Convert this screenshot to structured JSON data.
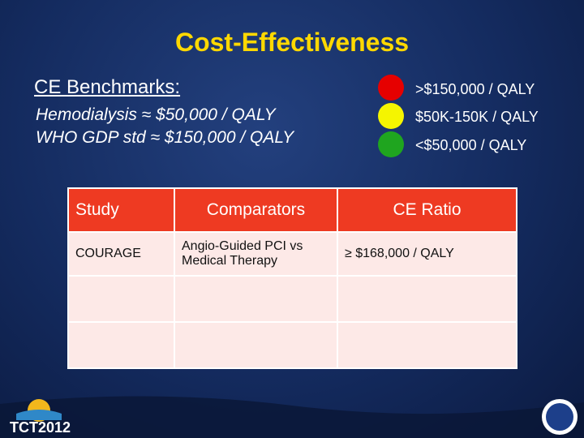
{
  "title": "Cost-Effectiveness",
  "benchmarks": {
    "heading": "CE Benchmarks:",
    "lines": [
      "Hemodialysis ≈ $50,000 / QALY",
      "WHO GDP std ≈ $150,000 / QALY"
    ]
  },
  "legend": [
    {
      "color": "#e60000",
      "label": ">$150,000 / QALY"
    },
    {
      "color": "#f5f500",
      "label": "$50K-150K / QALY"
    },
    {
      "color": "#1fa51f",
      "label": "<$50,000 / QALY"
    }
  ],
  "table": {
    "header": [
      "Study",
      "Comparators",
      "CE Ratio"
    ],
    "rows": [
      [
        "COURAGE",
        "Angio-Guided PCI vs Medical Therapy",
        "≥ $168,000 / QALY"
      ]
    ]
  },
  "footer": {
    "logo": "TCT2012"
  }
}
